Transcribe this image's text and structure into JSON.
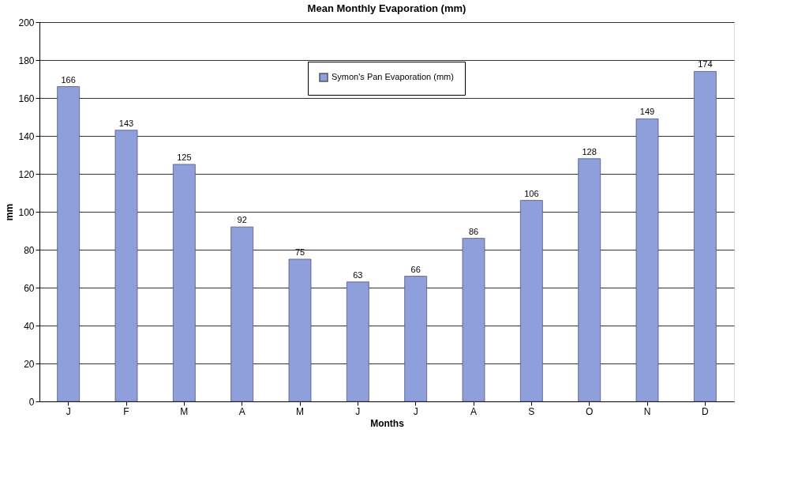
{
  "chart_data": {
    "type": "bar",
    "title": "Mean Monthly Evaporation (mm)",
    "xlabel": "Months",
    "ylabel": "mm",
    "categories": [
      "J",
      "F",
      "M",
      "A",
      "M",
      "J",
      "J",
      "A",
      "S",
      "O",
      "N",
      "D"
    ],
    "series": [
      {
        "name": "Symon's Pan Evaporation (mm)",
        "color": "#8f9fdc",
        "values": [
          166,
          143,
          125,
          92,
          75,
          63,
          66,
          86,
          106,
          128,
          149,
          174
        ]
      }
    ],
    "ylim": [
      0,
      200
    ],
    "yticks": [
      0,
      20,
      40,
      60,
      80,
      100,
      120,
      140,
      160,
      180,
      200
    ],
    "grid": "y",
    "legend": "top",
    "data_labels": true
  }
}
